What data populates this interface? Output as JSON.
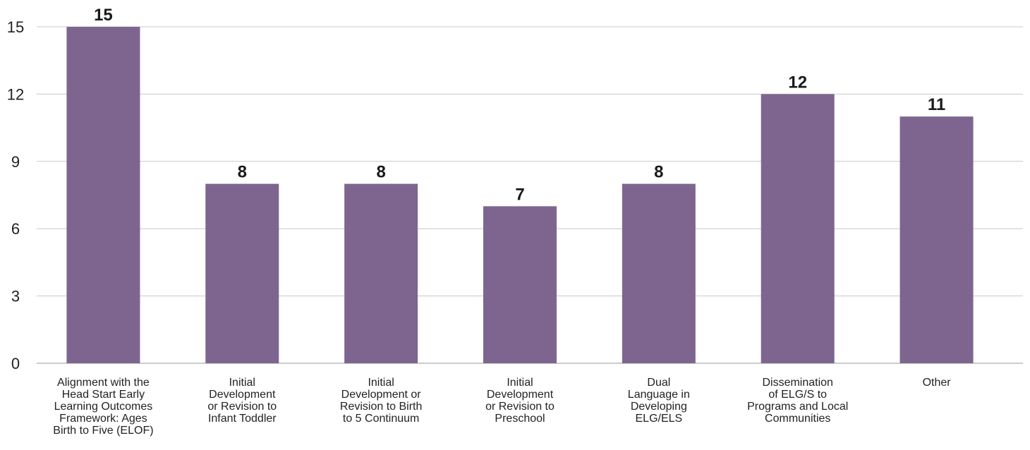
{
  "chart_data": {
    "type": "bar",
    "categories": [
      [
        "Alignment with the",
        "Head Start Early",
        "Learning Outcomes",
        "Framework: Ages",
        "Birth to Five (ELOF)"
      ],
      [
        "Initial",
        "Development",
        "or Revision to",
        "Infant Toddler"
      ],
      [
        "Initial",
        "Development or",
        "Revision to Birth",
        "to 5 Continuum"
      ],
      [
        "Initial",
        "Development",
        "or Revision to",
        "Preschool"
      ],
      [
        "Dual",
        "Language in",
        "Developing",
        "ELG/ELS"
      ],
      [
        "Dissemination",
        "of ELG/S to",
        "Programs and Local",
        "Communities"
      ],
      [
        "Other"
      ]
    ],
    "values": [
      15,
      8,
      8,
      7,
      8,
      12,
      11
    ],
    "data_labels": [
      "15",
      "8",
      "8",
      "7",
      "8",
      "12",
      "11"
    ],
    "yticks": [
      "0",
      "3",
      "6",
      "9",
      "12",
      "15"
    ],
    "ylim": [
      0,
      15
    ],
    "grid": true,
    "bar_color": "#7e6590"
  }
}
